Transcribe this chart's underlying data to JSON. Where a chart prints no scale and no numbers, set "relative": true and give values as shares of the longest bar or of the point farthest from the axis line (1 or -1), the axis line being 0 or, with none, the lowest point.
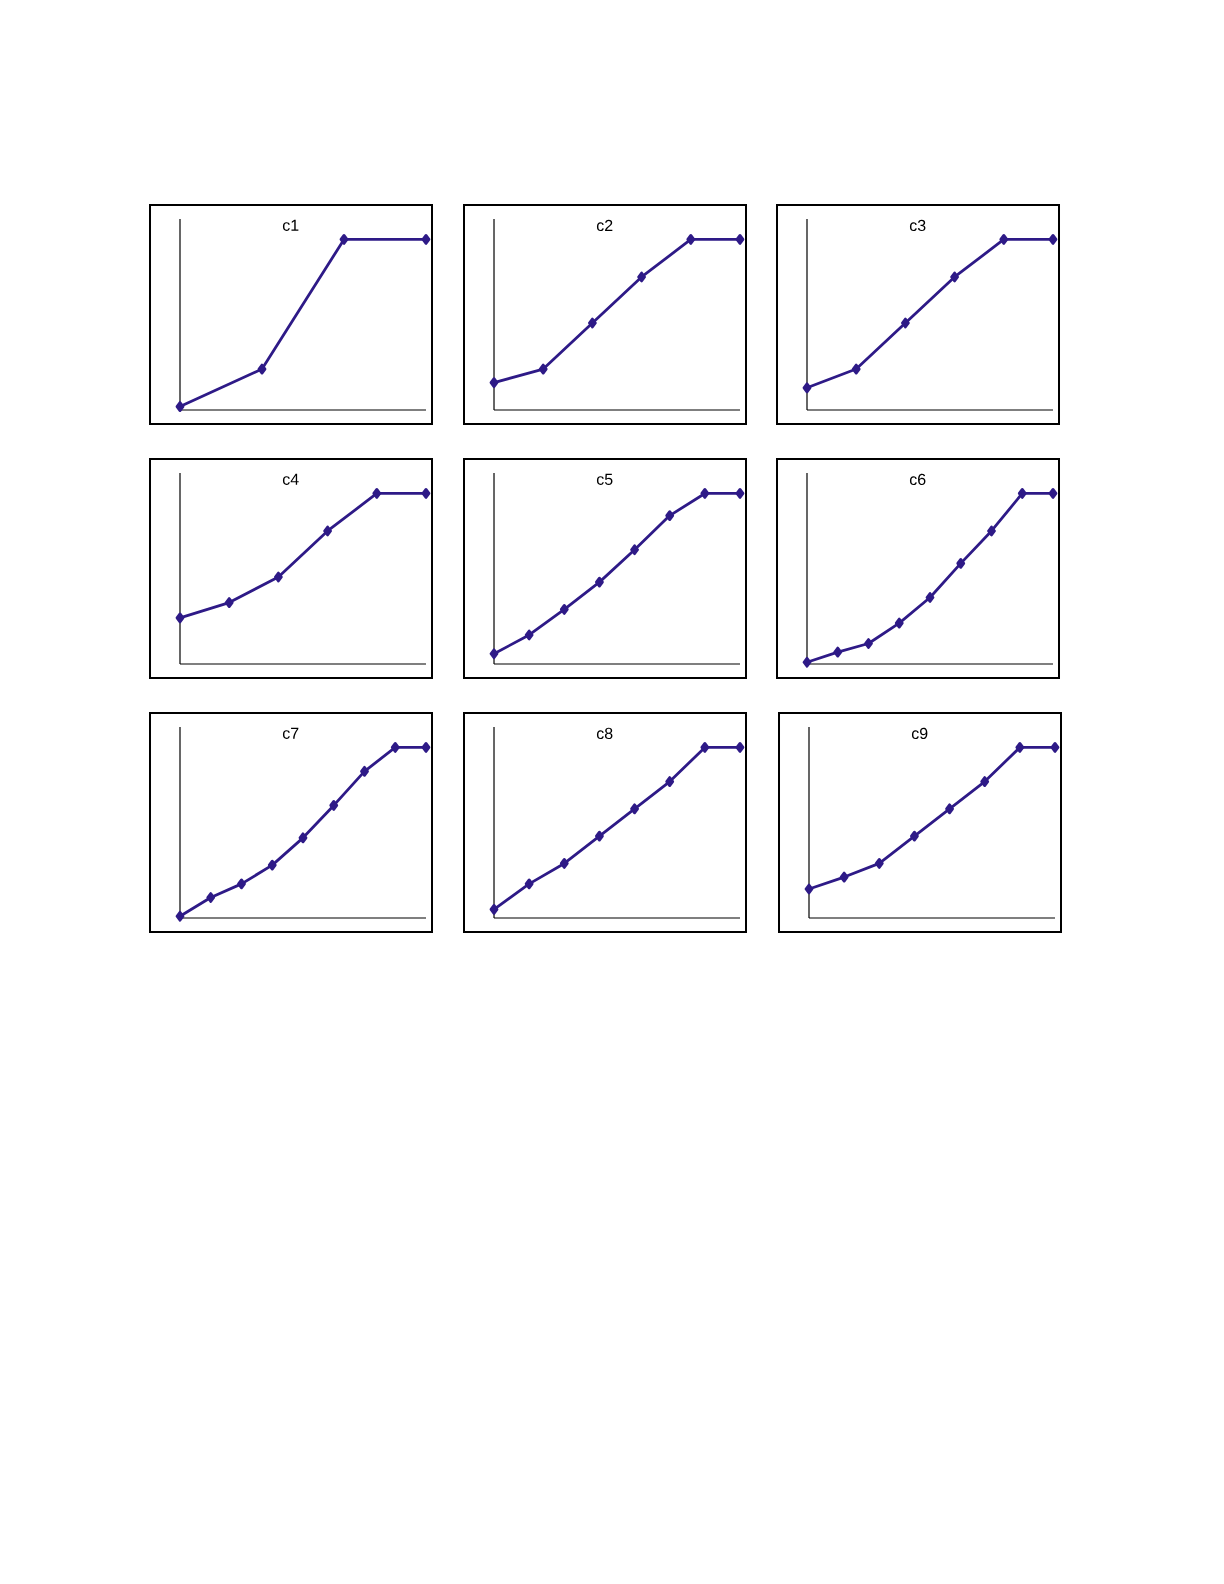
{
  "chart_data": [
    {
      "type": "line",
      "title": "c1",
      "color": "#2e1a87",
      "marker": "diamond",
      "relative": true,
      "categories": [
        null,
        null,
        null,
        null
      ],
      "values": [
        0.02,
        0.24,
        1,
        1
      ]
    },
    {
      "type": "line",
      "title": "c2",
      "color": "#2e1a87",
      "marker": "diamond",
      "relative": true,
      "categories": [
        null,
        null,
        null,
        null,
        null,
        null
      ],
      "values": [
        0.16,
        0.24,
        0.51,
        0.78,
        1,
        1
      ]
    },
    {
      "type": "line",
      "title": "c3",
      "color": "#2e1a87",
      "marker": "diamond",
      "relative": true,
      "categories": [
        null,
        null,
        null,
        null,
        null,
        null
      ],
      "values": [
        0.13,
        0.24,
        0.51,
        0.78,
        1,
        1
      ]
    },
    {
      "type": "line",
      "title": "c4",
      "color": "#2e1a87",
      "marker": "diamond",
      "relative": true,
      "categories": [
        null,
        null,
        null,
        null,
        null,
        null
      ],
      "values": [
        0.27,
        0.36,
        0.51,
        0.78,
        1,
        1
      ]
    },
    {
      "type": "line",
      "title": "c5",
      "color": "#2e1a87",
      "marker": "diamond",
      "relative": true,
      "categories": [
        null,
        null,
        null,
        null,
        null,
        null,
        null,
        null
      ],
      "values": [
        0.06,
        0.17,
        0.32,
        0.48,
        0.67,
        0.87,
        1,
        1
      ]
    },
    {
      "type": "line",
      "title": "c6",
      "color": "#2e1a87",
      "marker": "diamond",
      "relative": true,
      "categories": [
        null,
        null,
        null,
        null,
        null,
        null,
        null,
        null,
        null
      ],
      "values": [
        0.01,
        0.07,
        0.12,
        0.24,
        0.39,
        0.59,
        0.78,
        1,
        1
      ]
    },
    {
      "type": "line",
      "title": "c7",
      "color": "#2e1a87",
      "marker": "diamond",
      "relative": true,
      "categories": [
        null,
        null,
        null,
        null,
        null,
        null,
        null,
        null,
        null
      ],
      "values": [
        0.01,
        0.12,
        0.2,
        0.31,
        0.47,
        0.66,
        0.86,
        1,
        1
      ]
    },
    {
      "type": "line",
      "title": "c8",
      "color": "#2e1a87",
      "marker": "diamond",
      "relative": true,
      "categories": [
        null,
        null,
        null,
        null,
        null,
        null,
        null,
        null
      ],
      "values": [
        0.05,
        0.2,
        0.32,
        0.48,
        0.64,
        0.8,
        1,
        1
      ]
    },
    {
      "type": "line",
      "title": "c9",
      "color": "#2e1a87",
      "marker": "diamond",
      "relative": true,
      "categories": [
        null,
        null,
        null,
        null,
        null,
        null,
        null,
        null
      ],
      "values": [
        0.17,
        0.24,
        0.32,
        0.48,
        0.64,
        0.8,
        1,
        1
      ]
    }
  ]
}
